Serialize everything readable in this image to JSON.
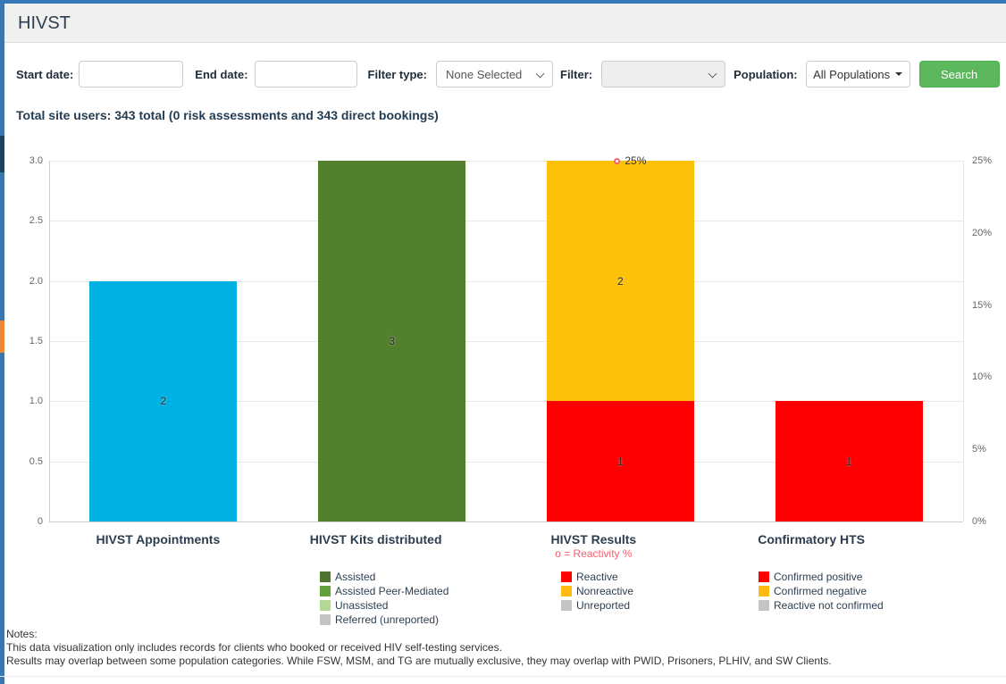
{
  "header": {
    "title": "HIVST"
  },
  "filters": {
    "start_date": {
      "label": "Start date:",
      "value": "",
      "placeholder": ""
    },
    "end_date": {
      "label": "End date:",
      "value": "",
      "placeholder": ""
    },
    "filter_type": {
      "label": "Filter type:",
      "value": "None Selected"
    },
    "filter": {
      "label": "Filter:",
      "value": ""
    },
    "population": {
      "label": "Population:",
      "value": "All Populations"
    },
    "search_label": "Search"
  },
  "summary_line": "Total site users: 343 total (0 risk assessments and 343 direct bookings)",
  "chart_data": {
    "type": "bar",
    "stacked": true,
    "grid": true,
    "left_axis": {
      "min": 0,
      "max": 3,
      "tick_values": [
        0,
        0.5,
        1,
        1.5,
        2,
        2.5,
        3
      ],
      "ticks": [
        "0",
        "0.5",
        "1.0",
        "1.5",
        "2.0",
        "2.5",
        "3.0"
      ]
    },
    "right_axis": {
      "min": 0,
      "max": 25,
      "tick_values": [
        0,
        5,
        10,
        15,
        20,
        25
      ],
      "ticks": [
        "0%",
        "5%",
        "10%",
        "15%",
        "20%",
        "25%"
      ]
    },
    "categories": [
      {
        "label": "HIVST Appointments",
        "segments": [
          {
            "name": "Appointments",
            "value": 2,
            "color": "#00b1e4"
          }
        ]
      },
      {
        "label": "HIVST Kits distributed",
        "segments": [
          {
            "name": "Assisted",
            "value": 3,
            "color": "#53802d"
          }
        ],
        "legend": [
          {
            "label": "Assisted",
            "color": "#4e7430"
          },
          {
            "label": "Assisted Peer-Mediated",
            "color": "#62a03c"
          },
          {
            "label": "Unassisted",
            "color": "#b3d795"
          },
          {
            "label": "Referred (unreported)",
            "color": "#c4c4c4"
          }
        ]
      },
      {
        "label": "HIVST Results",
        "subtitle": "o = Reactivity %",
        "subtitle_color": "#f4626e",
        "annotation": {
          "text": "25%",
          "marker": "open-circle",
          "marker_color": "#f4626e"
        },
        "segments": [
          {
            "name": "Reactive",
            "value": 1,
            "color": "#fe0000"
          },
          {
            "name": "Nonreactive",
            "value": 2,
            "color": "#fec109"
          }
        ],
        "legend": [
          {
            "label": "Reactive",
            "color": "#fe0000"
          },
          {
            "label": "Nonreactive",
            "color": "#feb913"
          },
          {
            "label": "Unreported",
            "color": "#c4c4c4"
          }
        ]
      },
      {
        "label": "Confirmatory HTS",
        "segments": [
          {
            "name": "Confirmed positive",
            "value": 1,
            "color": "#fe0000"
          }
        ],
        "legend": [
          {
            "label": "Confirmed positive",
            "color": "#fe0000"
          },
          {
            "label": "Confirmed negative",
            "color": "#feb913"
          },
          {
            "label": "Reactive not confirmed",
            "color": "#c4c4c4"
          }
        ]
      }
    ]
  },
  "notes": {
    "heading": "Notes:",
    "lines": [
      "This data visualization only includes records for clients who booked or received HIV self-testing services.",
      "Results may overlap between some population categories. While FSW, MSM, and TG are mutually exclusive, they may overlap with PWID, Prisoners, PLHIV, and SW Clients."
    ]
  },
  "colors": {
    "accent_blue": "#3678b6",
    "accent_navy": "#20415c",
    "accent_orange": "#ef8636",
    "search_green": "#5cb85c",
    "reactivity_pink": "#f4626e"
  }
}
